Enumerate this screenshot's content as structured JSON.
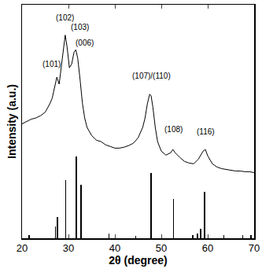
{
  "chart_data": {
    "type": "line",
    "x_label": "2θ (degree)",
    "y_label": "Intensity (a.u.)",
    "xlim": [
      20,
      70
    ],
    "xticks": [
      20,
      30,
      40,
      50,
      60,
      70
    ],
    "ylim": [
      0,
      100
    ],
    "yticks": [],
    "tick_labels": "x",
    "grid": false,
    "series": [
      {
        "type": "line",
        "color": "#000000",
        "x": [
          20,
          21,
          22,
          23,
          24,
          25,
          26,
          26.5,
          27,
          27.5,
          28,
          28.5,
          29,
          29.3,
          29.7,
          30.2,
          30.7,
          31.2,
          31.6,
          32,
          32.5,
          33,
          33.5,
          34,
          35,
          36,
          37,
          38,
          39,
          40,
          41,
          42,
          43,
          44,
          45,
          46,
          46.5,
          47,
          47.5,
          47.8,
          48.2,
          48.7,
          49.2,
          50,
          51,
          52,
          52.5,
          53,
          54,
          55,
          56,
          57,
          58,
          59,
          59.5,
          60,
          61,
          62,
          63,
          64,
          65,
          66,
          67,
          68,
          69,
          70
        ],
        "values": [
          49,
          50,
          51,
          51.5,
          52.5,
          54,
          57.6,
          60,
          64,
          69,
          66,
          74.6,
          83,
          87,
          82,
          73,
          74.6,
          79.7,
          80.7,
          77,
          68,
          58,
          51.5,
          47.5,
          44,
          42,
          41.4,
          40,
          39.3,
          38.6,
          38.6,
          39,
          39.7,
          40.7,
          43,
          47.5,
          51.5,
          57.6,
          61.7,
          61,
          56,
          47.5,
          41.4,
          37.3,
          35.6,
          36.6,
          38,
          36.6,
          34.6,
          32.9,
          32.2,
          31.9,
          33.9,
          37.3,
          38,
          35.3,
          31.9,
          30.5,
          29.8,
          29.5,
          29.2,
          28.8,
          28.8,
          28.5,
          28.5,
          28.1
        ]
      },
      {
        "type": "bar",
        "color": "#000000",
        "x": [
          21.5,
          27.2,
          27.6,
          29.4,
          31.7,
          32.7,
          38.7,
          44.5,
          47.8,
          52.6,
          56.8,
          57.8,
          58.5,
          59.3,
          63.5,
          67.5,
          69.3
        ],
        "values": [
          1.5,
          5,
          9,
          25,
          35,
          23,
          2,
          1,
          28,
          17,
          1.5,
          2,
          4,
          20,
          1.5,
          1.5,
          1.5
        ]
      }
    ],
    "annotations": [
      {
        "text": "(101)",
        "x": 26.3,
        "y": 72
      },
      {
        "text": "(102)",
        "x": 29.3,
        "y": 92
      },
      {
        "text": "(103)",
        "x": 32.4,
        "y": 88
      },
      {
        "text": "(006)",
        "x": 33.4,
        "y": 81
      },
      {
        "text": "(107)/(110)",
        "x": 47.8,
        "y": 67
      },
      {
        "text": "(108)",
        "x": 52.6,
        "y": 44
      },
      {
        "text": "(116)",
        "x": 59.5,
        "y": 43
      }
    ]
  }
}
